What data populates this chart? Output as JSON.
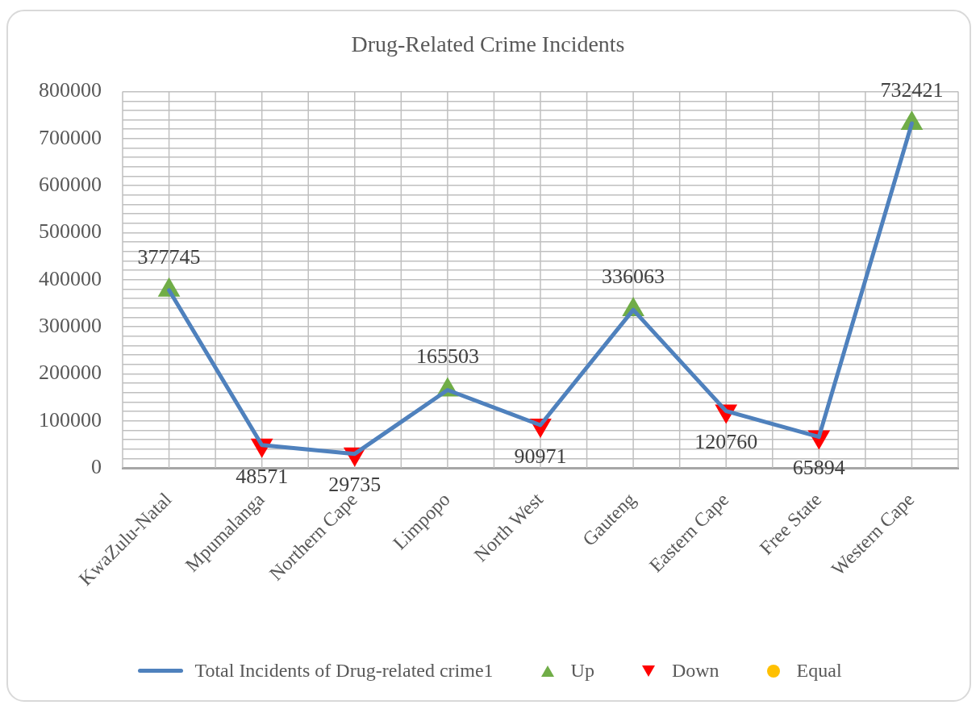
{
  "chart_data": {
    "type": "line",
    "title": "Drug-Related Crime Incidents",
    "categories": [
      "KwaZulu-Natal",
      "Mpumalanga",
      "Northern Cape",
      "Limpopo",
      "North West",
      "Gauteng",
      "Eastern Cape",
      "Free State",
      "Western Cape"
    ],
    "series": [
      {
        "name": "Total Incidents of Drug-related crime1",
        "color": "#4f81bd",
        "marker": "none",
        "values": [
          377745,
          48571,
          29735,
          165503,
          90971,
          336063,
          120760,
          65894,
          732421
        ]
      },
      {
        "name": "Up",
        "type": "scatter",
        "color": "#70ad47",
        "marker": "triangle",
        "values": [
          377745,
          null,
          null,
          165503,
          null,
          336063,
          null,
          null,
          732421
        ],
        "value_labels": [
          "377745",
          null,
          null,
          "165503",
          null,
          "336063",
          null,
          null,
          "732421"
        ]
      },
      {
        "name": "Down",
        "type": "scatter",
        "color": "#ff0000",
        "marker": "triangle-down",
        "values": [
          null,
          48571,
          29735,
          null,
          90971,
          null,
          120760,
          65894,
          null
        ],
        "value_labels": [
          null,
          "48571",
          "29735",
          null,
          "90971",
          null,
          "120760",
          "65894",
          null
        ]
      },
      {
        "name": "Equal",
        "type": "scatter",
        "color": "#ffc000",
        "marker": "circle",
        "values": [
          null,
          null,
          null,
          null,
          null,
          null,
          null,
          null,
          null
        ]
      }
    ],
    "ylim": [
      0,
      800000
    ],
    "yticks": [
      0,
      {
        "value": 20000,
        "label": null
      },
      {
        "value": 40000,
        "label": null
      },
      {
        "value": 60000,
        "label": null
      },
      {
        "value": 80000,
        "label": null
      },
      100000,
      {
        "value": 120000,
        "label": null
      },
      {
        "value": 140000,
        "label": null
      },
      {
        "value": 160000,
        "label": null
      },
      {
        "value": 180000,
        "label": null
      },
      200000,
      {
        "value": 220000,
        "label": null
      },
      {
        "value": 240000,
        "label": null
      },
      {
        "value": 260000,
        "label": null
      },
      {
        "value": 280000,
        "label": null
      },
      300000,
      {
        "value": 320000,
        "label": null
      },
      {
        "value": 340000,
        "label": null
      },
      {
        "value": 360000,
        "label": null
      },
      {
        "value": 380000,
        "label": null
      },
      400000,
      {
        "value": 420000,
        "label": null
      },
      {
        "value": 440000,
        "label": null
      },
      {
        "value": 460000,
        "label": null
      },
      {
        "value": 480000,
        "label": null
      },
      500000,
      {
        "value": 520000,
        "label": null
      },
      {
        "value": 540000,
        "label": null
      },
      {
        "value": 560000,
        "label": null
      },
      {
        "value": 580000,
        "label": null
      },
      600000,
      {
        "value": 620000,
        "label": null
      },
      {
        "value": 640000,
        "label": null
      },
      {
        "value": 660000,
        "label": null
      },
      {
        "value": 680000,
        "label": null
      },
      700000,
      {
        "value": 720000,
        "label": null
      },
      {
        "value": 740000,
        "label": null
      },
      {
        "value": 760000,
        "label": null
      },
      {
        "value": 780000,
        "label": null
      },
      800000
    ],
    "grid": true,
    "legend": "bottom"
  }
}
